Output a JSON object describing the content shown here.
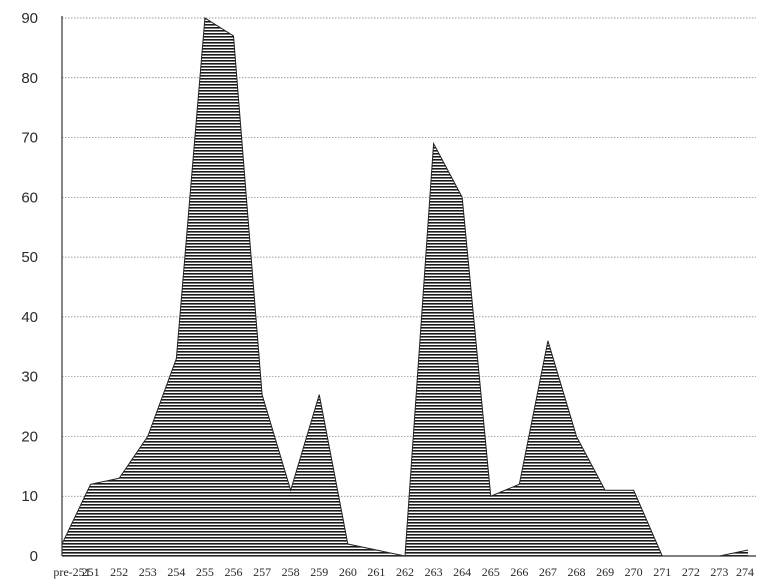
{
  "chart_data": {
    "type": "area",
    "title": "",
    "xlabel": "",
    "ylabel": "",
    "categories": [
      "pre-251",
      "251",
      "252",
      "253",
      "254",
      "255",
      "256",
      "257",
      "258",
      "259",
      "260",
      "261",
      "262",
      "263",
      "264",
      "265",
      "266",
      "267",
      "268",
      "269",
      "270",
      "271",
      "272",
      "273",
      "274"
    ],
    "values": [
      2,
      12,
      13,
      20,
      33,
      90,
      87,
      27,
      11,
      27,
      2,
      1,
      0,
      69,
      60,
      10,
      12,
      36,
      20,
      11,
      11,
      0,
      0,
      0,
      1
    ],
    "ylim": [
      0,
      90
    ],
    "yticks": [
      0,
      10,
      20,
      30,
      40,
      50,
      60,
      70,
      80,
      90
    ],
    "grid": true,
    "fill_pattern": "horizontal-stripes",
    "colors": {
      "fill_stripe": "#1a1a1a",
      "background": "#ffffff",
      "line": "#222222"
    }
  }
}
